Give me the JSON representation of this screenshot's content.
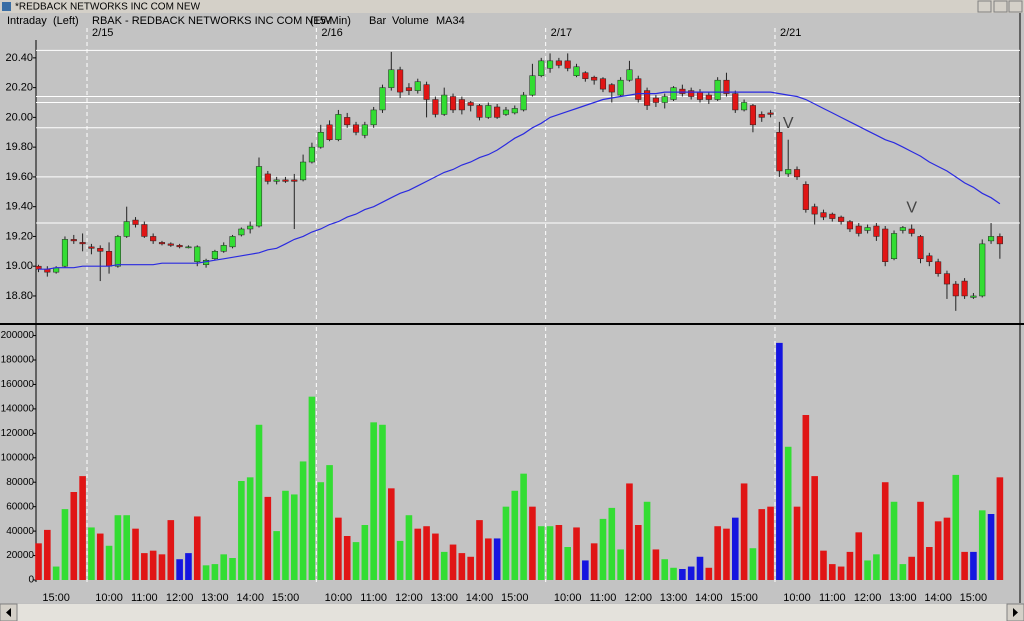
{
  "window_title": "*REDBACK NETWORKS INC COM NEW",
  "header": {
    "mode": "Intraday",
    "axis_side": "(Left)",
    "symbol": "RBAK - REDBACK NETWORKS INC COM NEW",
    "interval": "(15-Min)",
    "style": "Bar"
  },
  "chart_data": [
    {
      "type": "candlestick",
      "date_labels": [
        null,
        null,
        null,
        null,
        null,
        null,
        "2/15",
        null,
        null,
        null,
        null,
        null,
        null,
        null,
        null,
        null,
        null,
        null,
        null,
        null,
        null,
        null,
        null,
        null,
        null,
        null,
        null,
        null,
        null,
        null,
        null,
        null,
        "2/16",
        null,
        null,
        null,
        null,
        null,
        null,
        null,
        null,
        null,
        null,
        null,
        null,
        null,
        null,
        null,
        null,
        null,
        null,
        null,
        null,
        null,
        null,
        null,
        null,
        null,
        "2/17",
        null,
        null,
        null,
        null,
        null,
        null,
        null,
        null,
        null,
        null,
        null,
        null,
        null,
        null,
        null,
        null,
        null,
        null,
        null,
        null,
        null,
        null,
        null,
        null,
        null,
        "2/21",
        null,
        null,
        null,
        null,
        null,
        null,
        null,
        null,
        null,
        null,
        null,
        null,
        null,
        null,
        null,
        null,
        null,
        null,
        null,
        null,
        null,
        null,
        null,
        null,
        null
      ],
      "open": [
        19.0,
        18.98,
        18.96,
        19.0,
        19.18,
        19.16,
        19.13,
        19.12,
        19.1,
        19.0,
        19.2,
        19.31,
        19.28,
        19.2,
        19.16,
        19.15,
        19.14,
        19.13,
        19.03,
        19.01,
        19.05,
        19.1,
        19.13,
        19.21,
        19.25,
        19.27,
        19.62,
        19.57,
        19.58,
        19.58,
        19.58,
        19.7,
        19.8,
        19.95,
        19.85,
        20.0,
        19.95,
        19.88,
        19.95,
        20.05,
        20.2,
        20.32,
        20.2,
        20.18,
        20.22,
        20.12,
        20.02,
        20.14,
        20.12,
        20.1,
        20.08,
        20.0,
        20.07,
        20.02,
        20.03,
        20.05,
        20.15,
        20.28,
        20.33,
        20.38,
        20.38,
        20.28,
        20.3,
        20.27,
        20.26,
        20.22,
        20.15,
        20.25,
        20.26,
        20.18,
        20.13,
        20.1,
        20.12,
        20.19,
        20.18,
        20.17,
        20.15,
        20.12,
        20.25,
        20.16,
        20.05,
        20.08,
        20.02,
        20.03,
        19.9,
        19.62,
        19.65,
        19.55,
        19.4,
        19.36,
        19.35,
        19.33,
        19.3,
        19.27,
        19.24,
        19.27,
        19.25,
        19.05,
        19.24,
        19.25,
        19.2,
        19.07,
        19.03,
        18.95,
        18.88,
        18.9,
        18.79,
        18.8,
        19.17,
        19.2
      ],
      "high": [
        19.01,
        19.0,
        19.0,
        19.2,
        19.21,
        19.22,
        19.15,
        19.14,
        19.16,
        19.21,
        19.4,
        19.33,
        19.3,
        19.22,
        19.17,
        19.16,
        19.15,
        19.14,
        19.14,
        19.05,
        19.11,
        19.16,
        19.21,
        19.26,
        19.3,
        19.73,
        19.64,
        19.6,
        19.6,
        19.62,
        19.75,
        19.83,
        19.95,
        19.98,
        20.05,
        20.03,
        19.97,
        19.97,
        20.07,
        20.22,
        20.44,
        20.34,
        20.23,
        20.26,
        20.24,
        20.14,
        20.2,
        20.16,
        20.14,
        20.11,
        20.09,
        20.1,
        20.09,
        20.07,
        20.08,
        20.17,
        20.36,
        20.4,
        20.43,
        20.4,
        20.43,
        20.36,
        20.31,
        20.28,
        20.27,
        20.23,
        20.27,
        20.38,
        20.28,
        20.2,
        20.15,
        20.16,
        20.21,
        20.22,
        20.2,
        20.19,
        20.17,
        20.27,
        20.3,
        20.18,
        20.12,
        20.09,
        20.04,
        20.05,
        19.97,
        19.85,
        19.67,
        19.57,
        19.42,
        19.38,
        19.36,
        19.34,
        19.31,
        19.29,
        19.28,
        19.29,
        19.27,
        19.24,
        19.27,
        19.28,
        19.21,
        19.09,
        19.05,
        18.97,
        18.9,
        18.92,
        18.82,
        19.18,
        19.29,
        19.22
      ],
      "low": [
        18.96,
        18.93,
        18.95,
        18.99,
        19.15,
        19.1,
        19.08,
        18.9,
        18.95,
        18.99,
        19.19,
        19.26,
        19.19,
        19.15,
        19.14,
        19.13,
        19.12,
        19.12,
        19.0,
        18.99,
        19.04,
        19.09,
        19.12,
        19.2,
        19.22,
        19.26,
        19.55,
        19.55,
        19.56,
        19.25,
        19.57,
        19.69,
        19.79,
        19.84,
        19.84,
        19.93,
        19.88,
        19.86,
        19.93,
        20.03,
        20.18,
        20.13,
        20.15,
        20.16,
        20.0,
        20.0,
        20.01,
        20.03,
        20.02,
        20.04,
        19.98,
        19.99,
        19.99,
        20.01,
        20.02,
        20.04,
        20.14,
        20.27,
        20.3,
        20.33,
        20.31,
        20.27,
        20.24,
        20.22,
        20.17,
        20.1,
        20.14,
        20.24,
        20.1,
        20.05,
        20.07,
        20.06,
        20.11,
        20.14,
        20.12,
        20.1,
        20.09,
        20.11,
        20.14,
        20.03,
        20.04,
        19.9,
        19.97,
        20.0,
        19.6,
        19.6,
        19.58,
        19.36,
        19.28,
        19.31,
        19.3,
        19.28,
        19.23,
        19.2,
        19.22,
        19.17,
        19.0,
        19.04,
        19.22,
        19.2,
        19.02,
        19.0,
        18.93,
        18.78,
        18.7,
        18.78,
        18.78,
        18.79,
        19.15,
        19.05
      ],
      "close": [
        18.98,
        18.96,
        18.99,
        19.18,
        19.17,
        19.15,
        19.12,
        19.1,
        19.0,
        19.2,
        19.3,
        19.28,
        19.2,
        19.17,
        19.15,
        19.14,
        19.13,
        19.13,
        19.13,
        19.04,
        19.1,
        19.14,
        19.2,
        19.25,
        19.27,
        19.67,
        19.57,
        19.58,
        19.57,
        19.57,
        19.7,
        19.8,
        19.9,
        19.85,
        20.02,
        19.95,
        19.9,
        19.95,
        20.05,
        20.2,
        20.32,
        20.17,
        20.18,
        20.24,
        20.12,
        20.02,
        20.15,
        20.05,
        20.05,
        20.08,
        20.0,
        20.08,
        20.0,
        20.05,
        20.06,
        20.15,
        20.28,
        20.38,
        20.38,
        20.35,
        20.33,
        20.34,
        20.26,
        20.25,
        20.19,
        20.17,
        20.25,
        20.32,
        20.12,
        20.08,
        20.1,
        20.14,
        20.2,
        20.16,
        20.14,
        20.12,
        20.12,
        20.25,
        20.16,
        20.05,
        20.1,
        19.95,
        20.0,
        20.02,
        19.64,
        19.65,
        19.6,
        19.38,
        19.35,
        19.33,
        19.32,
        19.3,
        19.25,
        19.22,
        19.26,
        19.2,
        19.03,
        19.22,
        19.26,
        19.22,
        19.05,
        19.03,
        18.95,
        18.88,
        18.8,
        18.8,
        18.8,
        19.15,
        19.2,
        19.15
      ],
      "up_color": "#33dd33",
      "down_color": "#e01515",
      "ma": {
        "name": "MA34",
        "color": "#2a2ae0",
        "values": [
          18.98,
          18.98,
          18.99,
          18.99,
          18.99,
          19.0,
          19.0,
          19.0,
          19.0,
          19.01,
          19.01,
          19.01,
          19.01,
          19.01,
          19.02,
          19.02,
          19.02,
          19.02,
          19.02,
          19.03,
          19.04,
          19.05,
          19.06,
          19.07,
          19.08,
          19.09,
          19.11,
          19.12,
          19.15,
          19.18,
          19.2,
          19.23,
          19.25,
          19.28,
          19.3,
          19.33,
          19.35,
          19.38,
          19.4,
          19.43,
          19.46,
          19.49,
          19.51,
          19.54,
          19.57,
          19.6,
          19.63,
          19.65,
          19.68,
          19.7,
          19.73,
          19.75,
          19.78,
          19.82,
          19.86,
          19.89,
          19.93,
          19.96,
          20.0,
          20.02,
          20.04,
          20.06,
          20.08,
          20.1,
          20.12,
          20.13,
          20.14,
          20.15,
          20.16,
          20.16,
          20.16,
          20.17,
          20.17,
          20.17,
          20.17,
          20.17,
          20.17,
          20.17,
          20.17,
          20.17,
          20.17,
          20.17,
          20.17,
          20.17,
          20.16,
          20.15,
          20.14,
          20.12,
          20.09,
          20.06,
          20.03,
          20.0,
          19.97,
          19.94,
          19.91,
          19.88,
          19.85,
          19.83,
          19.8,
          19.77,
          19.74,
          19.7,
          19.67,
          19.64,
          19.6,
          19.56,
          19.53,
          19.49,
          19.46,
          19.42
        ]
      },
      "hlines": [
        20.45,
        20.14,
        20.1,
        19.93,
        19.6,
        19.29
      ],
      "annotations": [
        "V",
        "V"
      ],
      "ylim": [
        18.625,
        20.52
      ],
      "yticks": [
        {
          "value": 18.8,
          "label": "18.80"
        },
        {
          "value": 19.0,
          "label": "19.00"
        },
        {
          "value": 19.2,
          "label": "19.20"
        },
        {
          "value": 19.4,
          "label": "19.40"
        },
        {
          "value": 19.6,
          "label": "19.60"
        },
        {
          "value": 19.8,
          "label": "19.80"
        },
        {
          "value": 20.0,
          "label": "20.00"
        },
        {
          "value": 20.2,
          "label": "20.20"
        },
        {
          "value": 20.4,
          "label": "20.40"
        }
      ]
    },
    {
      "type": "bar",
      "title": "Volume",
      "title_color": "#2a2ae0",
      "categories": [
        null,
        null,
        "15:00",
        null,
        null,
        null,
        null,
        null,
        "10:00",
        null,
        null,
        null,
        "11:00",
        null,
        null,
        null,
        "12:00",
        null,
        null,
        null,
        "13:00",
        null,
        null,
        null,
        "14:00",
        null,
        null,
        null,
        "15:00",
        null,
        null,
        null,
        null,
        null,
        "10:00",
        null,
        null,
        null,
        "11:00",
        null,
        null,
        null,
        "12:00",
        null,
        null,
        null,
        "13:00",
        null,
        null,
        null,
        "14:00",
        null,
        null,
        null,
        "15:00",
        null,
        null,
        null,
        null,
        null,
        "10:00",
        null,
        null,
        null,
        "11:00",
        null,
        null,
        null,
        "12:00",
        null,
        null,
        null,
        "13:00",
        null,
        null,
        null,
        "14:00",
        null,
        null,
        null,
        "15:00",
        null,
        null,
        null,
        null,
        null,
        "10:00",
        null,
        null,
        null,
        "11:00",
        null,
        null,
        null,
        "12:00",
        null,
        null,
        null,
        "13:00",
        null,
        null,
        null,
        "14:00",
        null,
        null,
        null,
        "15:00",
        null,
        null,
        null
      ],
      "values": [
        30000,
        41000,
        11000,
        58000,
        72000,
        85000,
        43000,
        38000,
        28000,
        53000,
        53000,
        42000,
        22000,
        24000,
        21000,
        49000,
        17000,
        22000,
        52000,
        12000,
        13000,
        21000,
        18000,
        81000,
        84000,
        127000,
        68000,
        40000,
        73000,
        70000,
        97000,
        150000,
        80000,
        94000,
        51000,
        36000,
        31000,
        45000,
        129000,
        127000,
        75000,
        32000,
        53000,
        42000,
        44000,
        38000,
        23000,
        29000,
        22000,
        19000,
        49000,
        34000,
        34000,
        60000,
        73000,
        87000,
        60000,
        44000,
        44000,
        45000,
        27000,
        43000,
        16000,
        30000,
        50000,
        59000,
        25000,
        79000,
        45000,
        64000,
        25000,
        17000,
        10000,
        9000,
        11000,
        19000,
        10000,
        44000,
        42000,
        51000,
        79000,
        26000,
        58000,
        60000,
        194000,
        109000,
        60000,
        135000,
        85000,
        24000,
        13000,
        11000,
        23000,
        39000,
        16000,
        21000,
        80000,
        64000,
        13000,
        19000,
        64000,
        27000,
        48000,
        51000,
        86000,
        23000,
        23000,
        57000,
        54000,
        84000
      ],
      "colors": [
        "#e01515",
        "#e01515",
        "#33dd33",
        "#33dd33",
        "#e01515",
        "#e01515",
        "#33dd33",
        "#e01515",
        "#33dd33",
        "#33dd33",
        "#33dd33",
        "#e01515",
        "#e01515",
        "#e01515",
        "#e01515",
        "#e01515",
        "#1515e0",
        "#1515e0",
        "#e01515",
        "#33dd33",
        "#33dd33",
        "#33dd33",
        "#33dd33",
        "#33dd33",
        "#33dd33",
        "#33dd33",
        "#e01515",
        "#33dd33",
        "#33dd33",
        "#33dd33",
        "#33dd33",
        "#33dd33",
        "#33dd33",
        "#33dd33",
        "#e01515",
        "#e01515",
        "#33dd33",
        "#33dd33",
        "#33dd33",
        "#33dd33",
        "#e01515",
        "#33dd33",
        "#33dd33",
        "#e01515",
        "#e01515",
        "#e01515",
        "#33dd33",
        "#e01515",
        "#e01515",
        "#e01515",
        "#e01515",
        "#e01515",
        "#1515e0",
        "#33dd33",
        "#33dd33",
        "#33dd33",
        "#e01515",
        "#33dd33",
        "#33dd33",
        "#e01515",
        "#33dd33",
        "#e01515",
        "#1515e0",
        "#e01515",
        "#33dd33",
        "#33dd33",
        "#33dd33",
        "#e01515",
        "#e01515",
        "#33dd33",
        "#e01515",
        "#33dd33",
        "#33dd33",
        "#1515e0",
        "#1515e0",
        "#1515e0",
        "#e01515",
        "#e01515",
        "#e01515",
        "#1515e0",
        "#e01515",
        "#33dd33",
        "#e01515",
        "#e01515",
        "#1515e0",
        "#33dd33",
        "#e01515",
        "#e01515",
        "#e01515",
        "#e01515",
        "#e01515",
        "#e01515",
        "#e01515",
        "#e01515",
        "#33dd33",
        "#33dd33",
        "#e01515",
        "#33dd33",
        "#33dd33",
        "#e01515",
        "#e01515",
        "#e01515",
        "#e01515",
        "#e01515",
        "#33dd33",
        "#e01515",
        "#1515e0",
        "#33dd33",
        "#1515e0",
        "#e01515"
      ],
      "ylim": [
        0,
        207000
      ],
      "yticks": [
        0,
        20000,
        40000,
        60000,
        80000,
        100000,
        120000,
        140000,
        160000,
        180000,
        200000
      ]
    }
  ]
}
